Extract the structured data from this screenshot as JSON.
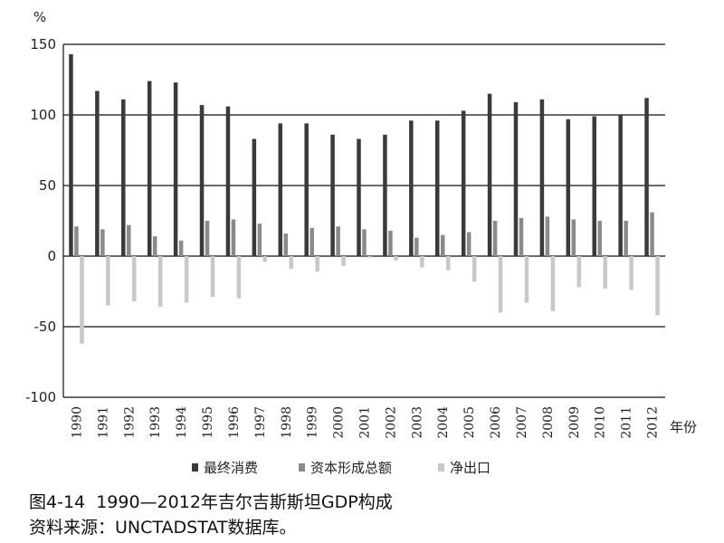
{
  "chart_data": {
    "type": "bar",
    "ylabel": "%",
    "xlabel": "年份",
    "ylim": [
      -100,
      150
    ],
    "yticks": [
      150,
      100,
      50,
      0,
      -50,
      -100
    ],
    "grid": true,
    "legend_position": "bottom",
    "categories": [
      "1990",
      "1991",
      "1992",
      "1993",
      "1994",
      "1995",
      "1996",
      "1997",
      "1998",
      "1999",
      "2000",
      "2001",
      "2002",
      "2003",
      "2004",
      "2005",
      "2006",
      "2007",
      "2008",
      "2009",
      "2010",
      "2011",
      "2012"
    ],
    "series": [
      {
        "name": "最终消费",
        "color": "#3a3a3a",
        "values": [
          143,
          117,
          111,
          124,
          123,
          107,
          106,
          83,
          94,
          94,
          86,
          83,
          86,
          96,
          96,
          103,
          115,
          109,
          111,
          97,
          99,
          100,
          112
        ]
      },
      {
        "name": "资本形成总额",
        "color": "#8a8a8a",
        "values": [
          21,
          19,
          22,
          14,
          11,
          25,
          26,
          23,
          16,
          20,
          21,
          19,
          18,
          13,
          15,
          17,
          25,
          27,
          28,
          26,
          25,
          25,
          31
        ]
      },
      {
        "name": "净出口",
        "color": "#c8c8c8",
        "values": [
          -62,
          -35,
          -32,
          -36,
          -33,
          -29,
          -30,
          -4,
          -9,
          -11,
          -7,
          -1,
          -3,
          -8,
          -10,
          -18,
          -40,
          -33,
          -39,
          -22,
          -23,
          -24,
          -42
        ]
      }
    ]
  },
  "caption": {
    "title": "图4-14  1990—2012年吉尔吉斯斯坦GDP构成",
    "source": "资料来源：UNCTADSTAT数据库。"
  }
}
